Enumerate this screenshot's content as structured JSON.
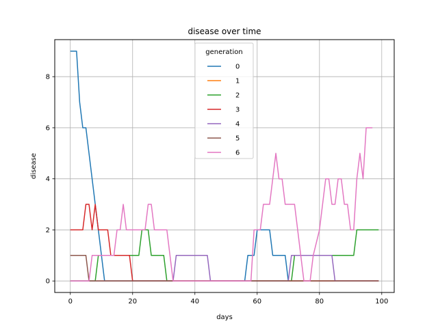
{
  "chart_data": {
    "type": "line",
    "title": "disease over time",
    "xlabel": "days",
    "ylabel": "disease",
    "xlim": [
      -5,
      104
    ],
    "ylim": [
      -0.45,
      9.45
    ],
    "xticks": [
      0,
      20,
      40,
      60,
      80,
      100
    ],
    "yticks": [
      0,
      2,
      4,
      6,
      8
    ],
    "grid": true,
    "legend": {
      "title": "generation",
      "placement": "upper-center"
    },
    "series": [
      {
        "name": "0",
        "color": "#1f77b4",
        "points": [
          [
            0,
            9
          ],
          [
            2,
            9
          ],
          [
            3,
            7
          ],
          [
            4,
            6
          ],
          [
            5,
            6
          ],
          [
            6,
            5
          ],
          [
            7,
            4
          ],
          [
            8,
            3
          ],
          [
            9,
            2
          ],
          [
            10,
            1
          ],
          [
            11,
            0
          ],
          [
            56,
            0
          ],
          [
            57,
            1
          ],
          [
            59,
            1
          ],
          [
            60,
            2
          ],
          [
            64,
            2
          ],
          [
            65,
            1
          ],
          [
            69,
            1
          ],
          [
            70,
            0
          ],
          [
            99,
            0
          ]
        ]
      },
      {
        "name": "1",
        "color": "#ff7f0e",
        "points": [
          [
            0,
            0
          ],
          [
            99,
            0
          ]
        ]
      },
      {
        "name": "2",
        "color": "#2ca02c",
        "points": [
          [
            0,
            0
          ],
          [
            8,
            0
          ],
          [
            9,
            1
          ],
          [
            22,
            1
          ],
          [
            23,
            2
          ],
          [
            25,
            2
          ],
          [
            26,
            1
          ],
          [
            30,
            1
          ],
          [
            31,
            0
          ],
          [
            71,
            0
          ],
          [
            72,
            1
          ],
          [
            91,
            1
          ],
          [
            92,
            2
          ],
          [
            99,
            2
          ]
        ]
      },
      {
        "name": "3",
        "color": "#d62728",
        "points": [
          [
            0,
            2
          ],
          [
            4,
            2
          ],
          [
            5,
            3
          ],
          [
            6,
            3
          ],
          [
            7,
            2
          ],
          [
            8,
            3
          ],
          [
            9,
            2
          ],
          [
            12,
            2
          ],
          [
            13,
            1
          ],
          [
            19,
            1
          ],
          [
            20,
            0
          ],
          [
            99,
            0
          ]
        ]
      },
      {
        "name": "4",
        "color": "#9467bd",
        "points": [
          [
            0,
            0
          ],
          [
            33,
            0
          ],
          [
            34,
            1
          ],
          [
            44,
            1
          ],
          [
            45,
            0
          ],
          [
            70,
            0
          ],
          [
            71,
            1
          ],
          [
            84,
            1
          ],
          [
            85,
            0
          ],
          [
            99,
            0
          ]
        ]
      },
      {
        "name": "5",
        "color": "#8c564b",
        "points": [
          [
            0,
            1
          ],
          [
            5,
            1
          ],
          [
            6,
            0
          ],
          [
            99,
            0
          ]
        ]
      },
      {
        "name": "6",
        "color": "#e377c2",
        "points": [
          [
            0,
            0
          ],
          [
            6,
            0
          ],
          [
            7,
            1
          ],
          [
            14,
            1
          ],
          [
            15,
            2
          ],
          [
            16,
            2
          ],
          [
            17,
            3
          ],
          [
            18,
            2
          ],
          [
            24,
            2
          ],
          [
            25,
            3
          ],
          [
            26,
            3
          ],
          [
            27,
            2
          ],
          [
            31,
            2
          ],
          [
            32,
            1
          ],
          [
            33,
            0
          ],
          [
            58,
            0
          ],
          [
            59,
            2
          ],
          [
            61,
            2
          ],
          [
            62,
            3
          ],
          [
            64,
            3
          ],
          [
            65,
            4
          ],
          [
            66,
            5
          ],
          [
            67,
            4
          ],
          [
            68,
            4
          ],
          [
            69,
            3
          ],
          [
            72,
            3
          ],
          [
            74,
            1
          ],
          [
            75,
            0
          ],
          [
            77,
            0
          ],
          [
            78,
            1
          ],
          [
            80,
            2
          ],
          [
            81,
            3
          ],
          [
            82,
            4
          ],
          [
            83,
            4
          ],
          [
            84,
            3
          ],
          [
            85,
            3
          ],
          [
            86,
            4
          ],
          [
            87,
            4
          ],
          [
            88,
            3
          ],
          [
            89,
            3
          ],
          [
            90,
            2
          ],
          [
            91,
            2
          ],
          [
            92,
            4
          ],
          [
            93,
            5
          ],
          [
            94,
            4
          ],
          [
            95,
            6
          ],
          [
            97,
            6
          ]
        ]
      }
    ]
  }
}
